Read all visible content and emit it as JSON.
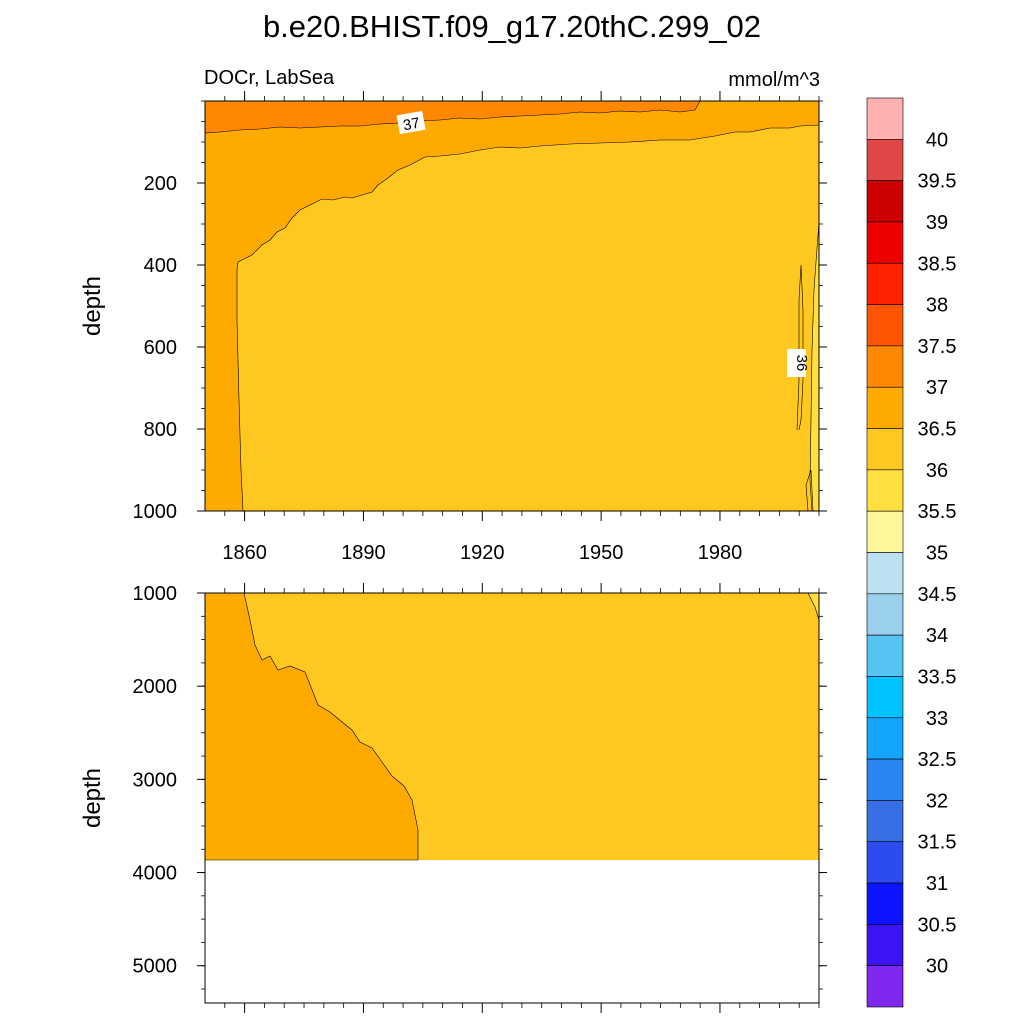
{
  "chart_data": {
    "type": "heatmap",
    "title": "b.e20.BHIST.f09_g17.20thC.299_02",
    "left_subtitle": "DOCr, LabSea",
    "right_subtitle": "mmol/m^3",
    "xlim": [
      1850,
      2005
    ],
    "x_ticks": [
      "1860",
      "1890",
      "1920",
      "1950",
      "1980"
    ],
    "panels": [
      {
        "name": "upper",
        "ylabel": "depth",
        "ylim": [
          0,
          1000
        ],
        "y_ticks": [
          "200",
          "400",
          "600",
          "800",
          "1000"
        ],
        "contour_labels": [
          {
            "text": "37",
            "x": 1905,
            "depth": 55
          },
          {
            "text": "36",
            "x": 2000,
            "depth": 650
          }
        ]
      },
      {
        "name": "lower",
        "ylabel": "depth",
        "ylim": [
          1000,
          5400
        ],
        "data_bottom_depth": 3850,
        "y_ticks": [
          "1000",
          "2000",
          "3000",
          "4000",
          "5000"
        ]
      }
    ],
    "colorbar": {
      "labels": [
        "40",
        "39.5",
        "39",
        "38.5",
        "38",
        "37.5",
        "37",
        "36.5",
        "36",
        "35.5",
        "35",
        "34.5",
        "34",
        "33.5",
        "33",
        "32.5",
        "32",
        "31.5",
        "31",
        "30.5",
        "30"
      ],
      "colors": [
        "#FFB0B0",
        "#E04848",
        "#CC0000",
        "#EE0000",
        "#FF2200",
        "#FF5500",
        "#FF8800",
        "#FFAA00",
        "#FFC820",
        "#FFE040",
        "#FFF799",
        "#BCE1F2",
        "#9AD0EC",
        "#55C4F5",
        "#00C2FF",
        "#14A5FF",
        "#2A86F2",
        "#366FE6",
        "#2C4BF0",
        "#0A14FF",
        "#3C14F5",
        "#7F28EE"
      ]
    },
    "colors": {
      "level_37_0": "#FF8800",
      "level_36_5": "#FFAA00",
      "level_36_0": "#FFC820",
      "level_35_5": "#FFE040"
    }
  }
}
